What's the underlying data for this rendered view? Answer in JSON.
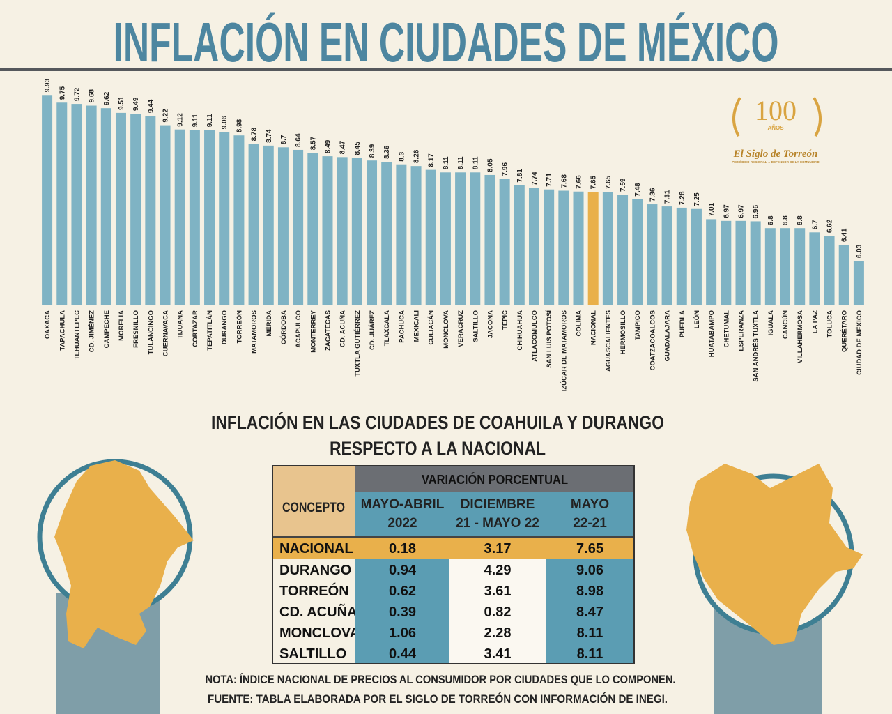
{
  "chart_data": {
    "type": "bar",
    "title": "INFLACIÓN EN CIUDADES DE MÉXICO",
    "categories": [
      "OAXACA",
      "TAPACHULA",
      "TEHUANTEPEC",
      "CD. JIMÉNEZ",
      "CAMPECHE",
      "MORELIA",
      "FRESNILLO",
      "TULANCINGO",
      "CUERNAVACA",
      "TIJUANA",
      "CORTAZAR",
      "TEPATITLÁN",
      "DURANGO",
      "TORREÓN",
      "MATAMOROS",
      "MÉRIDA",
      "CÓRDOBA",
      "ACAPULCO",
      "MONTERREY",
      "ZACATECAS",
      "CD. ACUÑA",
      "TUXTLA GUTIÉRREZ",
      "CD. JUÁREZ",
      "TLAXCALA",
      "PACHUCA",
      "MEXICALI",
      "CULIACÁN",
      "MONCLOVA",
      "VERACRUZ",
      "SALTILLO",
      "JACONA",
      "TEPIC",
      "CHIHUAHUA",
      "ATLACOMULCO",
      "SAN LUIS POTOSÍ",
      "IZÚCAR DE MATAMOROS",
      "COLIMA",
      "NACIONAL",
      "AGUASCALIENTES",
      "HERMOSILLO",
      "TAMPICO",
      "COATZACOALCOS",
      "GUADALAJARA",
      "PUEBLA",
      "LEÓN",
      "HUATABAMPO",
      "CHETUMAL",
      "ESPERANZA",
      "SAN ANDRÉS TUXTLA",
      "IGUALA",
      "CANCÚN",
      "VILLAHERMOSA",
      "LA PAZ",
      "TOLUCA",
      "QUERÉTARO",
      "CIUDAD DE MÉXICO"
    ],
    "values": [
      9.93,
      9.75,
      9.72,
      9.68,
      9.62,
      9.51,
      9.49,
      9.44,
      9.22,
      9.12,
      9.11,
      9.11,
      9.06,
      8.98,
      8.78,
      8.74,
      8.7,
      8.64,
      8.57,
      8.49,
      8.47,
      8.45,
      8.39,
      8.36,
      8.3,
      8.26,
      8.17,
      8.11,
      8.11,
      8.11,
      8.05,
      7.96,
      7.81,
      7.74,
      7.71,
      7.68,
      7.66,
      7.65,
      7.65,
      7.59,
      7.48,
      7.36,
      7.31,
      7.28,
      7.25,
      7.01,
      6.97,
      6.97,
      6.96,
      6.8,
      6.8,
      6.8,
      6.7,
      6.62,
      6.41,
      6.03
    ],
    "colors": [
      "#7fb3c4",
      "#7fb3c4",
      "#7fb3c4",
      "#7fb3c4",
      "#7fb3c4",
      "#7fb3c4",
      "#7fb3c4",
      "#7fb3c4",
      "#7fb3c4",
      "#7fb3c4",
      "#7fb3c4",
      "#7fb3c4",
      "#7fb3c4",
      "#7fb3c4",
      "#7fb3c4",
      "#7fb3c4",
      "#7fb3c4",
      "#7fb3c4",
      "#7fb3c4",
      "#7fb3c4",
      "#7fb3c4",
      "#7fb3c4",
      "#7fb3c4",
      "#7fb3c4",
      "#7fb3c4",
      "#7fb3c4",
      "#7fb3c4",
      "#7fb3c4",
      "#7fb3c4",
      "#7fb3c4",
      "#7fb3c4",
      "#7fb3c4",
      "#7fb3c4",
      "#7fb3c4",
      "#7fb3c4",
      "#7fb3c4",
      "#7fb3c4",
      "#e9b04b",
      "#7fb3c4",
      "#7fb3c4",
      "#7fb3c4",
      "#7fb3c4",
      "#7fb3c4",
      "#7fb3c4",
      "#7fb3c4",
      "#7fb3c4",
      "#7fb3c4",
      "#7fb3c4",
      "#7fb3c4",
      "#7fb3c4",
      "#7fb3c4",
      "#7fb3c4",
      "#7fb3c4",
      "#7fb3c4",
      "#7fb3c4",
      "#7fb3c4"
    ],
    "ylim": [
      5,
      10
    ]
  },
  "logo": {
    "number": "100",
    "years": "AÑOS",
    "name": "El Siglo de Torreón",
    "tagline": "PERIÓDICO REGIONAL ★ DEFENSOR DE LA COMUNIDAD"
  },
  "table": {
    "title": [
      "INFLACIÓN EN LAS CIUDADES DE COAHUILA Y DURANGO",
      "RESPECTO A LA NACIONAL"
    ],
    "concept_header": "CONCEPTO",
    "group_header": "VARIACIÓN PORCENTUAL",
    "columns": [
      [
        "MAYO-ABRIL",
        "2022"
      ],
      [
        "DICIEMBRE",
        "21 - MAYO 22"
      ],
      [
        "MAYO",
        "22-21"
      ]
    ],
    "rows": [
      [
        "NACIONAL",
        "0.18",
        "3.17",
        "7.65"
      ],
      [
        "DURANGO",
        "0.94",
        "4.29",
        "9.06"
      ],
      [
        "TORREÓN",
        "0.62",
        "3.61",
        "8.98"
      ],
      [
        "CD. ACUÑA",
        "0.39",
        "0.82",
        "8.47"
      ],
      [
        "MONCLOVA",
        "1.06",
        "2.28",
        "8.11"
      ],
      [
        "SALTILLO",
        "0.44",
        "3.41",
        "8.11"
      ]
    ]
  },
  "notes": [
    "NOTA: ÍNDICE NACIONAL DE PRECIOS AL CONSUMIDOR POR CIUDADES QUE LO COMPONEN.",
    "FUENTE: TABLA ELABORADA POR EL SIGLO DE TORREÓN CON INFORMACIÓN DE INEGI."
  ]
}
